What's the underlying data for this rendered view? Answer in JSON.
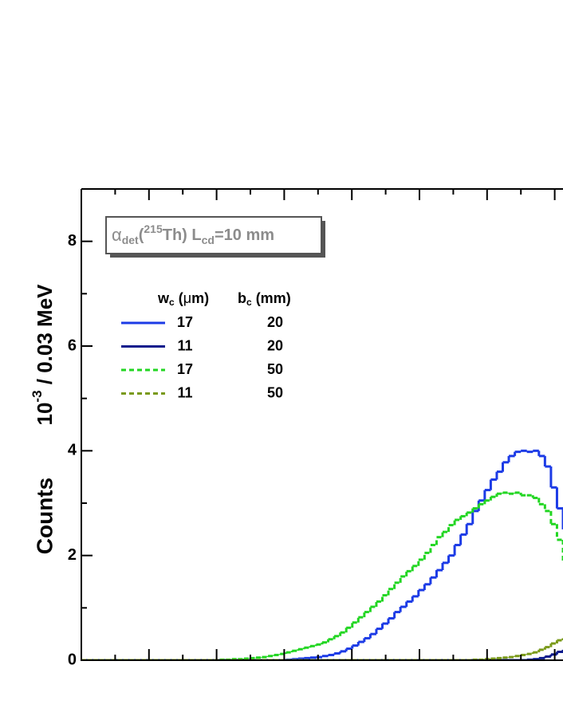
{
  "chart_data": {
    "type": "histogram",
    "y_label": [
      "Counts",
      "10",
      "-3",
      " / 0.03 MeV"
    ],
    "annotation": [
      "α",
      "det",
      "(",
      "215",
      "Th) L",
      "cd",
      "=10 mm"
    ],
    "legend_headers": [
      [
        "w",
        "c",
        " (",
        "μ",
        "m)"
      ],
      [
        "b",
        "c",
        " (mm)"
      ]
    ],
    "ylim": [
      0,
      9
    ],
    "yticks": [
      0,
      2,
      4,
      6,
      8
    ],
    "yminorticks": [
      1,
      3,
      5,
      7
    ],
    "series": [
      {
        "w_c": "17",
        "b_c": "20",
        "color": "#1c3be6",
        "dashed": false,
        "values": [
          0,
          0,
          0,
          0,
          0,
          0,
          0,
          0,
          0,
          0,
          0,
          0,
          0,
          0,
          0,
          0,
          0,
          0,
          0,
          0,
          0,
          0,
          0,
          0,
          0,
          0,
          0,
          0,
          0,
          0,
          0,
          0,
          0,
          0,
          0.01,
          0.02,
          0.03,
          0.04,
          0.05,
          0.06,
          0.08,
          0.1,
          0.13,
          0.17,
          0.22,
          0.28,
          0.35,
          0.42,
          0.5,
          0.6,
          0.7,
          0.8,
          0.92,
          1.02,
          1.12,
          1.22,
          1.34,
          1.45,
          1.58,
          1.72,
          1.86,
          2.0,
          2.2,
          2.4,
          2.6,
          2.85,
          3.05,
          3.25,
          3.45,
          3.6,
          3.78,
          3.9,
          3.98,
          4.0,
          3.98,
          4.0,
          3.9,
          3.7,
          3.3,
          2.9,
          2.5
        ]
      },
      {
        "w_c": "11",
        "b_c": "20",
        "color": "#0b1a8c",
        "dashed": false,
        "values": [
          0,
          0,
          0,
          0,
          0,
          0,
          0,
          0,
          0,
          0,
          0,
          0,
          0,
          0,
          0,
          0,
          0,
          0,
          0,
          0,
          0,
          0,
          0,
          0,
          0,
          0,
          0,
          0,
          0,
          0,
          0,
          0,
          0,
          0,
          0,
          0,
          0,
          0,
          0,
          0,
          0,
          0,
          0,
          0,
          0,
          0,
          0,
          0,
          0,
          0,
          0,
          0,
          0,
          0,
          0,
          0,
          0,
          0,
          0,
          0,
          0,
          0,
          0,
          0,
          0,
          0,
          0,
          0,
          0,
          0,
          0,
          0,
          0,
          0,
          0.01,
          0.02,
          0.04,
          0.07,
          0.11,
          0.16,
          0.2
        ]
      },
      {
        "w_c": "17",
        "b_c": "50",
        "color": "#22d622",
        "dashed": true,
        "values": [
          0,
          0,
          0,
          0,
          0,
          0,
          0,
          0,
          0,
          0,
          0,
          0,
          0,
          0,
          0,
          0,
          0,
          0,
          0,
          0,
          0,
          0,
          0,
          0.01,
          0.01,
          0.02,
          0.02,
          0.03,
          0.04,
          0.05,
          0.06,
          0.08,
          0.1,
          0.12,
          0.15,
          0.18,
          0.21,
          0.24,
          0.27,
          0.3,
          0.34,
          0.4,
          0.46,
          0.53,
          0.62,
          0.72,
          0.82,
          0.92,
          1.02,
          1.12,
          1.24,
          1.36,
          1.48,
          1.6,
          1.7,
          1.8,
          1.92,
          2.05,
          2.2,
          2.35,
          2.45,
          2.58,
          2.68,
          2.75,
          2.82,
          2.9,
          2.98,
          3.05,
          3.12,
          3.18,
          3.2,
          3.18,
          3.2,
          3.15,
          3.15,
          3.1,
          2.98,
          2.85,
          2.6,
          2.3,
          1.85
        ]
      },
      {
        "w_c": "11",
        "b_c": "50",
        "color": "#7a9a1a",
        "dashed": true,
        "values": [
          0,
          0,
          0,
          0,
          0,
          0,
          0,
          0,
          0,
          0,
          0,
          0,
          0,
          0,
          0,
          0,
          0,
          0,
          0,
          0,
          0,
          0,
          0,
          0,
          0,
          0,
          0,
          0,
          0,
          0,
          0,
          0,
          0,
          0,
          0,
          0,
          0,
          0,
          0,
          0,
          0,
          0,
          0,
          0,
          0,
          0,
          0,
          0,
          0,
          0,
          0,
          0,
          0,
          0,
          0,
          0,
          0,
          0,
          0,
          0,
          0,
          0,
          0,
          0,
          0,
          0.01,
          0.01,
          0.02,
          0.03,
          0.04,
          0.05,
          0.06,
          0.08,
          0.1,
          0.12,
          0.15,
          0.2,
          0.25,
          0.32,
          0.38,
          0.42
        ]
      }
    ]
  }
}
